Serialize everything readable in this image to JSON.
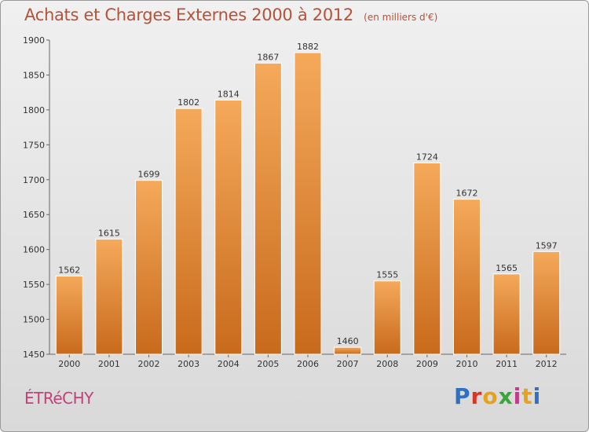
{
  "header": {
    "title": "Achats et Charges Externes 2000 à 2012",
    "subtitle": "(en milliers d'€)"
  },
  "footer": {
    "town": "ÉTRéCHY",
    "brand": "Proxiti"
  },
  "colors": {
    "title": "#b5523a",
    "town": "#c4407a",
    "bar_light": "#f5a95a",
    "bar_dark": "#c86a1c",
    "brand_letters": [
      "#2f6fc4",
      "#d8342a",
      "#e6a11f",
      "#3aa63a",
      "#c43a8a",
      "#e6a11f",
      "#2f6fc4"
    ]
  },
  "chart_data": {
    "type": "bar",
    "categories": [
      "2000",
      "2001",
      "2002",
      "2003",
      "2004",
      "2005",
      "2006",
      "2007",
      "2008",
      "2009",
      "2010",
      "2011",
      "2012"
    ],
    "values": [
      1562,
      1615,
      1699,
      1802,
      1814,
      1867,
      1882,
      1460,
      1555,
      1724,
      1672,
      1565,
      1597
    ],
    "ylim": [
      1450,
      1900
    ],
    "yticks": [
      1450,
      1500,
      1550,
      1600,
      1650,
      1700,
      1750,
      1800,
      1850,
      1900
    ],
    "grid": false
  }
}
